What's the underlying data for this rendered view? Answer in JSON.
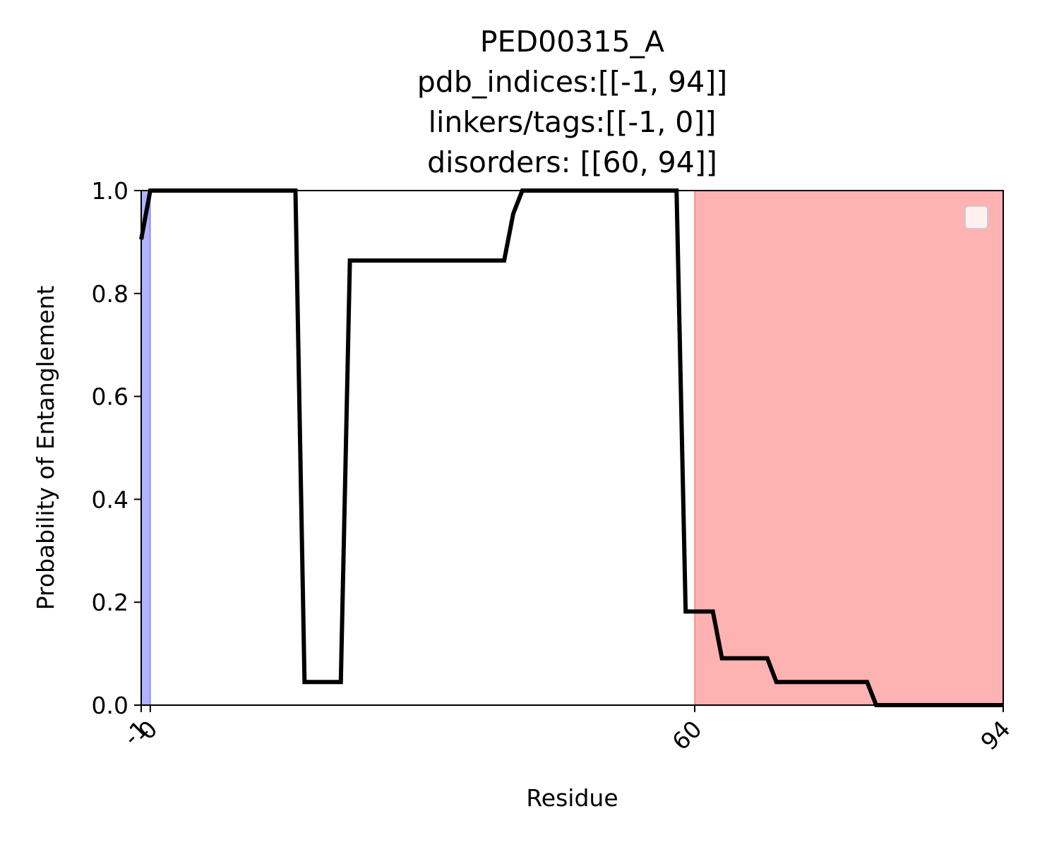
{
  "chart_data": {
    "type": "line",
    "title_lines": [
      "PED00315_A",
      "pdb_indices:[[-1, 94]]",
      "linkers/tags:[[-1, 0]]",
      "disorders: [[60, 94]]"
    ],
    "xlabel": "Residue",
    "ylabel": "Probability of Entanglement",
    "xlim": [
      -1,
      94
    ],
    "ylim": [
      0,
      1
    ],
    "x_ticks": [
      -1,
      0,
      60,
      94
    ],
    "x_tick_labels": [
      "-1",
      "0",
      "60",
      "94"
    ],
    "y_ticks": [
      0,
      0.2,
      0.4,
      0.6,
      0.8,
      1.0
    ],
    "y_tick_labels": [
      "0.0",
      "0.2",
      "0.4",
      "0.6",
      "0.8",
      "1.0"
    ],
    "grid": false,
    "legend": "top-right",
    "shaded_regions": [
      {
        "label": "linkers/tags",
        "x0": -1,
        "x1": 0,
        "color": "#0000ff",
        "opacity": 0.3
      },
      {
        "label": "disorders",
        "x0": 60,
        "x1": 94,
        "color": "#ff0000",
        "opacity": 0.3
      }
    ],
    "series": [
      {
        "color": "#000000",
        "x": [
          -1,
          0,
          16,
          17,
          21,
          22,
          39,
          40,
          41,
          58,
          59,
          62,
          63,
          68,
          69,
          79,
          80,
          94
        ],
        "y": [
          0.905,
          1.0,
          1.0,
          0.045,
          0.045,
          0.864,
          0.864,
          0.955,
          1.0,
          1.0,
          0.182,
          0.182,
          0.091,
          0.091,
          0.045,
          0.045,
          0.0,
          0.0
        ]
      }
    ]
  }
}
